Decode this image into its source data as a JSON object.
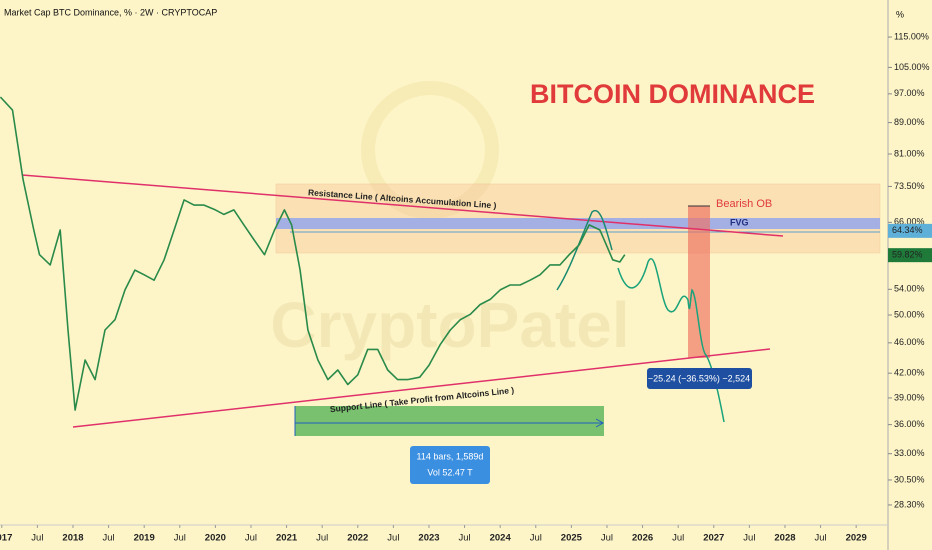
{
  "chart_data": {
    "type": "line",
    "header": "Market Cap BTC Dominance, % · 2W · CRYPTOCAP",
    "title": "BITCOIN DOMINANCE",
    "axis_unit": "%",
    "watermark": "CryptoPatel",
    "log_scale": true,
    "grid": false,
    "xlim": [
      2016.975,
      2029.447
    ],
    "ylim": [
      26.65,
      128.5
    ],
    "xticks": [
      {
        "value": 2017,
        "label": "2017"
      },
      {
        "value": 2017.5,
        "label": "Jul"
      },
      {
        "value": 2018,
        "label": "2018"
      },
      {
        "value": 2018.5,
        "label": "Jul"
      },
      {
        "value": 2019,
        "label": "2019"
      },
      {
        "value": 2019.5,
        "label": "Jul"
      },
      {
        "value": 2020,
        "label": "2020"
      },
      {
        "value": 2020.5,
        "label": "Jul"
      },
      {
        "value": 2021,
        "label": "2021"
      },
      {
        "value": 2021.5,
        "label": "Jul"
      },
      {
        "value": 2022,
        "label": "2022"
      },
      {
        "value": 2022.5,
        "label": "Jul"
      },
      {
        "value": 2023,
        "label": "2023"
      },
      {
        "value": 2023.5,
        "label": "Jul"
      },
      {
        "value": 2024,
        "label": "2024"
      },
      {
        "value": 2024.5,
        "label": "Jul"
      },
      {
        "value": 2025,
        "label": "2025"
      },
      {
        "value": 2025.5,
        "label": "Jul"
      },
      {
        "value": 2026,
        "label": "2026"
      },
      {
        "value": 2026.5,
        "label": "Jul"
      },
      {
        "value": 2027,
        "label": "2027"
      },
      {
        "value": 2027.5,
        "label": "Jul"
      },
      {
        "value": 2028,
        "label": "2028"
      },
      {
        "value": 2028.5,
        "label": "Jul"
      },
      {
        "value": 2029,
        "label": "2029"
      }
    ],
    "yticks": [
      {
        "value": 115,
        "label": "115.00%"
      },
      {
        "value": 105,
        "label": "105.00%"
      },
      {
        "value": 97,
        "label": "97.00%"
      },
      {
        "value": 89,
        "label": "89.00%"
      },
      {
        "value": 81,
        "label": "81.00%"
      },
      {
        "value": 73.5,
        "label": "73.50%"
      },
      {
        "value": 66,
        "label": "66.00%"
      },
      {
        "value": 54,
        "label": "54.00%"
      },
      {
        "value": 50,
        "label": "50.00%"
      },
      {
        "value": 46,
        "label": "46.00%"
      },
      {
        "value": 42,
        "label": "42.00%"
      },
      {
        "value": 39,
        "label": "39.00%"
      },
      {
        "value": 36,
        "label": "36.00%"
      },
      {
        "value": 33,
        "label": "33.00%"
      },
      {
        "value": 30.5,
        "label": "30.50%"
      },
      {
        "value": 28.3,
        "label": "28.30%"
      }
    ],
    "price_labels": [
      {
        "value": 64.34,
        "label": "64.34%",
        "color": "#5fb0d8"
      },
      {
        "value": 59.82,
        "label": "59.82%",
        "color": "#1f7a3a"
      }
    ],
    "series": [
      {
        "name": "BTC Dominance",
        "color": "#2a8a4a",
        "x": [
          2016.98,
          2017.15,
          2017.3,
          2017.45,
          2017.53,
          2017.68,
          2017.82,
          2017.93,
          2018.03,
          2018.17,
          2018.31,
          2018.45,
          2018.59,
          2018.73,
          2018.87,
          2019.0,
          2019.14,
          2019.28,
          2019.42,
          2019.56,
          2019.7,
          2019.84,
          2020.0,
          2020.12,
          2020.26,
          2020.4,
          2020.55,
          2020.69,
          2020.83,
          2020.97,
          2021.07,
          2021.19,
          2021.3,
          2021.44,
          2021.58,
          2021.72,
          2021.86,
          2022.0,
          2022.14,
          2022.28,
          2022.42,
          2022.56,
          2022.7,
          2022.87,
          2023.0,
          2023.16,
          2023.3,
          2023.44,
          2023.58,
          2023.72,
          2023.86,
          2024.0,
          2024.14,
          2024.28,
          2024.42,
          2024.56,
          2024.7,
          2024.84,
          2024.97,
          2025.11,
          2025.25,
          2025.4,
          2025.49,
          2025.58,
          2025.68,
          2025.75
        ],
        "values": [
          96.1,
          92.4,
          75,
          64.5,
          59.9,
          58.1,
          64.5,
          47.8,
          37.6,
          43.7,
          41.2,
          47.8,
          49.3,
          53.9,
          57.2,
          56.4,
          55.5,
          59,
          64.5,
          70.6,
          69.5,
          69.5,
          68.5,
          67.6,
          68.5,
          65.5,
          62.5,
          59.9,
          64.5,
          68.5,
          65.5,
          57.2,
          47.8,
          43.7,
          41.2,
          42.4,
          40.6,
          41.8,
          45.1,
          45.1,
          42.4,
          41.2,
          41.2,
          41.5,
          43,
          45.8,
          47.8,
          49.3,
          50.1,
          51.6,
          52.4,
          53.9,
          54.7,
          54.7,
          55.5,
          56.4,
          58.1,
          58.1,
          59.9,
          61.7,
          65.5,
          64.5,
          61.7,
          59,
          58.6,
          59.9
        ]
      }
    ],
    "annotations": {
      "resistance": "Resistance Line ( Altcoins Accumulation Line )",
      "support": "Support Line ( Take Profit from Altcoins Line )",
      "bearish_ob": "Bearish OB",
      "fvg": "FVG",
      "measure": "−25.24 (−36.53%) −2,524",
      "range_bars": "114 bars, 1,589d",
      "range_vol": "Vol 52.47 T"
    }
  }
}
